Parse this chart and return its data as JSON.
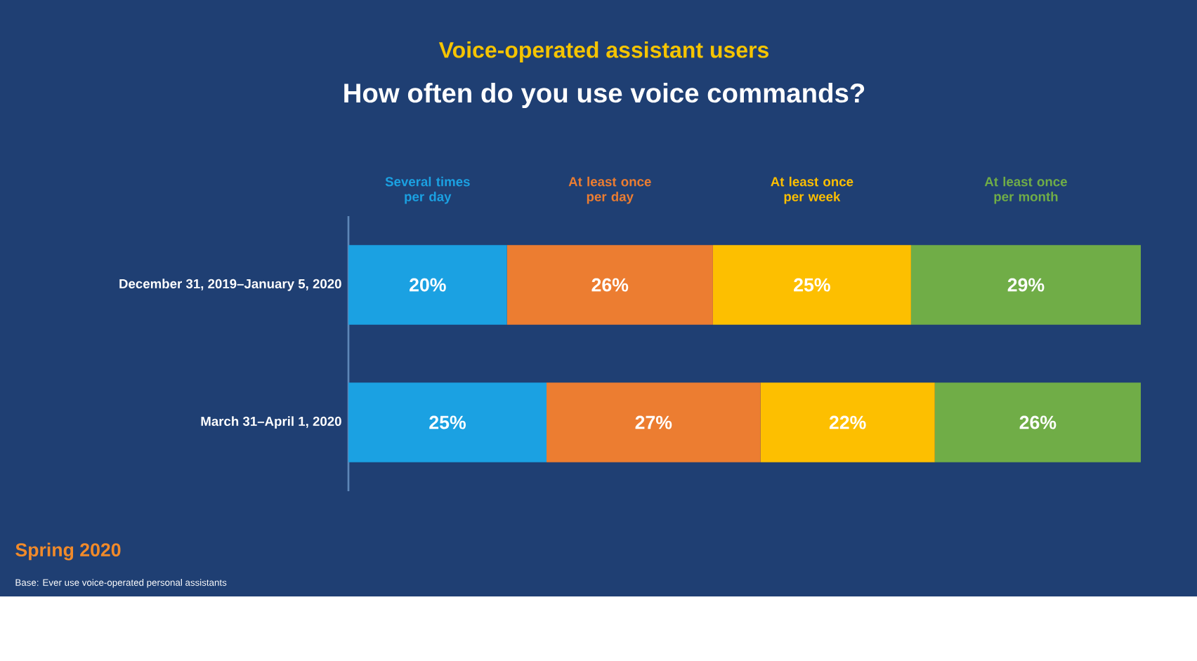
{
  "chart_data": {
    "type": "bar",
    "orientation": "horizontal",
    "stacked": true,
    "title": "Voice-operated assistant users",
    "subtitle": "How often do you use voice commands?",
    "categories": [
      "December 31, 2019–January 5, 2020",
      "March 31–April 1, 2020"
    ],
    "series": [
      {
        "name": "Several times per day",
        "color": "#1ba1e2",
        "values": [
          20,
          25
        ],
        "value_labels": [
          "20%",
          "25%"
        ]
      },
      {
        "name": "At least once per day",
        "color": "#ec7d31",
        "values": [
          26,
          27
        ],
        "value_labels": [
          "26%",
          "27%"
        ]
      },
      {
        "name": "At least once per week",
        "color": "#fdbf00",
        "values": [
          25,
          22
        ],
        "value_labels": [
          "25%",
          "22%"
        ]
      },
      {
        "name": "At least once per month",
        "color": "#70ad47",
        "values": [
          29,
          26
        ],
        "value_labels": [
          "29%",
          "26%"
        ]
      }
    ],
    "xlim": [
      0,
      100
    ],
    "tick_labels": "y",
    "annotations": [
      "Spring 2020",
      "Base: Ever use voice-operated personal assistants"
    ]
  }
}
